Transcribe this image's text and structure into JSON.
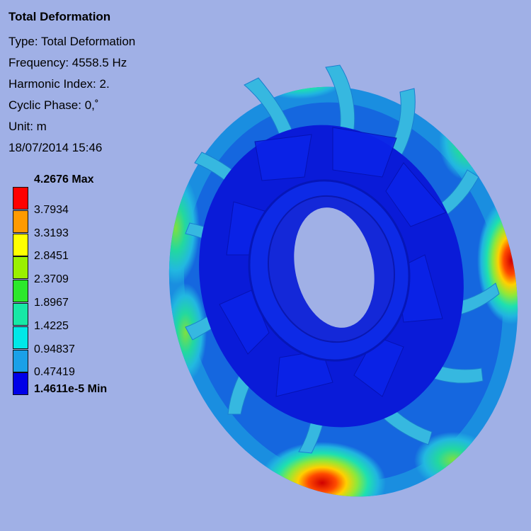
{
  "result": {
    "title": "Total Deformation",
    "type_line": "Type: Total Deformation",
    "frequency_line": "Frequency: 4558.5 Hz",
    "harmonic_line": "Harmonic Index: 2.",
    "phase_line": "Cyclic Phase: 0,˚",
    "unit_line": "Unit: m",
    "date_line": "18/07/2014 15:46"
  },
  "legend": {
    "max_label": "4.2676 Max",
    "min_label": "1.4611e-5 Min",
    "levels": [
      {
        "label": "3.7934",
        "color": "#ff0000"
      },
      {
        "label": "3.3193",
        "color": "#ff9a00"
      },
      {
        "label": "2.8451",
        "color": "#ffff00"
      },
      {
        "label": "2.3709",
        "color": "#9af000"
      },
      {
        "label": "1.8967",
        "color": "#2ce82c"
      },
      {
        "label": "1.4225",
        "color": "#17e8a6"
      },
      {
        "label": "0.94837",
        "color": "#00e8e8"
      },
      {
        "label": "0.47419",
        "color": "#1aa0e8"
      },
      {
        "label": "",
        "color": "#0000e8"
      }
    ]
  },
  "colors": {
    "background": "#a0b0e6",
    "low": "#0000e8",
    "high": "#ff0000"
  }
}
